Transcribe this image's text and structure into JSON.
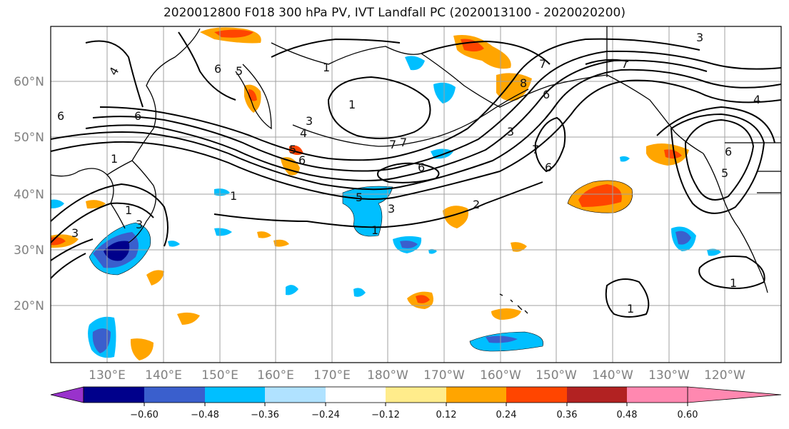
{
  "title": "2020012800 F018 300 hPa PV, IVT Landfall PC (2020013100 - 2020020200)",
  "lat_labels": [
    "60°N",
    "50°N",
    "40°N",
    "30°N",
    "20°N"
  ],
  "lon_labels": [
    "130°E",
    "140°E",
    "150°E",
    "160°E",
    "170°E",
    "180°W",
    "170°W",
    "160°W",
    "150°W",
    "140°W",
    "130°W",
    "120°W"
  ],
  "colorbar": {
    "colors": [
      "#9932cc",
      "#00008b",
      "#3a5fcd",
      "#00bfff",
      "#b0e2ff",
      "#ffffff",
      "#ffec8b",
      "#ffa500",
      "#ff4500",
      "#b22222",
      "#ff88b0"
    ],
    "tick_labels": [
      "−0.60",
      "−0.48",
      "−0.36",
      "−0.24",
      "−0.12",
      "0.12",
      "0.24",
      "0.36",
      "0.48",
      "0.60"
    ]
  },
  "contour_labels": [
    "4",
    "6",
    "5",
    "1",
    "1",
    "7",
    "3",
    "6",
    "3",
    "7",
    "7",
    "6",
    "8",
    "6",
    "3",
    "4",
    "1",
    "6",
    "5",
    "3",
    "1",
    "2",
    "3",
    "1",
    "7",
    "4",
    "1",
    "1",
    "6",
    "5",
    "6",
    "6",
    "7",
    "5",
    "3",
    "1"
  ],
  "colors": {
    "grid": "#a0a0a0",
    "contour": "#000000",
    "coast": "#000000"
  }
}
